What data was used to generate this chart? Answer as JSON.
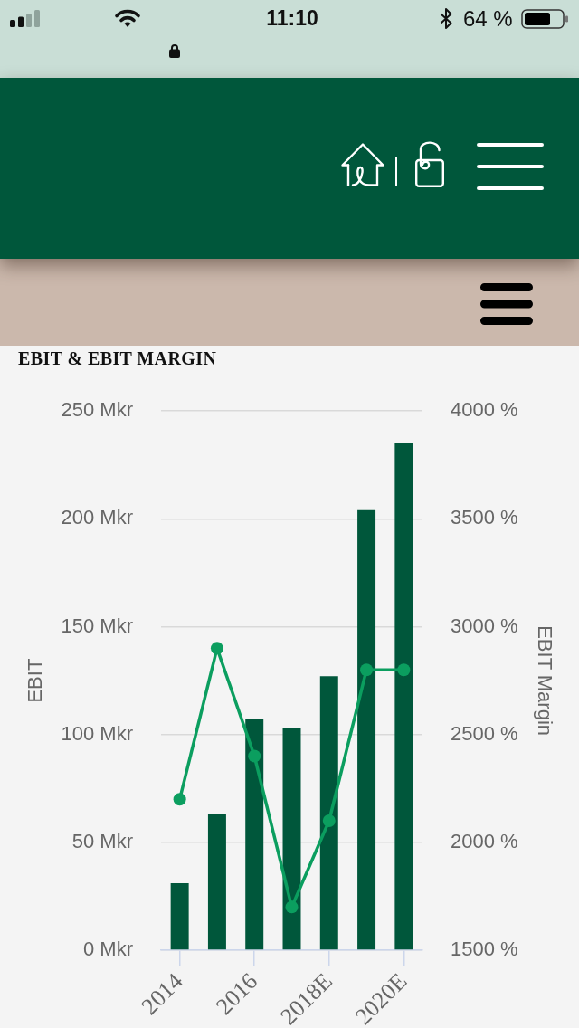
{
  "chart_data": {
    "type": "bar",
    "title": "EBIT & EBIT MARGIN",
    "ylabel": "EBIT",
    "y2label": "EBIT Margin",
    "categories": [
      "2014",
      null,
      "2016",
      null,
      "2018E",
      null,
      "2020E"
    ],
    "series": [
      {
        "color": "#00573b",
        "values": [
          31,
          63,
          107,
          103,
          127,
          204,
          235
        ]
      },
      {
        "type": "line",
        "axis": "y2",
        "color": "#0b9e5f",
        "values": [
          2200,
          2900,
          2400,
          1700,
          2100,
          2800,
          2800
        ]
      }
    ],
    "ylim": [
      0,
      250
    ],
    "yticks": [
      {
        "value": 0,
        "label": "0 Mkr"
      },
      {
        "value": 50,
        "label": "50 Mkr"
      },
      {
        "value": 100,
        "label": "100 Mkr"
      },
      {
        "value": 150,
        "label": "150 Mkr"
      },
      {
        "value": 200,
        "label": "200 Mkr"
      },
      {
        "value": 250,
        "label": "250 Mkr"
      }
    ],
    "y2lim": [
      1500,
      4000
    ],
    "y2ticks": [
      {
        "value": 1500,
        "label": "1500 %"
      },
      {
        "value": 2000,
        "label": "2000 %"
      },
      {
        "value": 2500,
        "label": "2500 %"
      },
      {
        "value": 3000,
        "label": "3000 %"
      },
      {
        "value": 3500,
        "label": "3500 %"
      },
      {
        "value": 4000,
        "label": "4000 %"
      }
    ],
    "grid": "y",
    "marker": "circle",
    "line_style": "solid",
    "annotations": [
      "11:10",
      "64 %"
    ]
  }
}
